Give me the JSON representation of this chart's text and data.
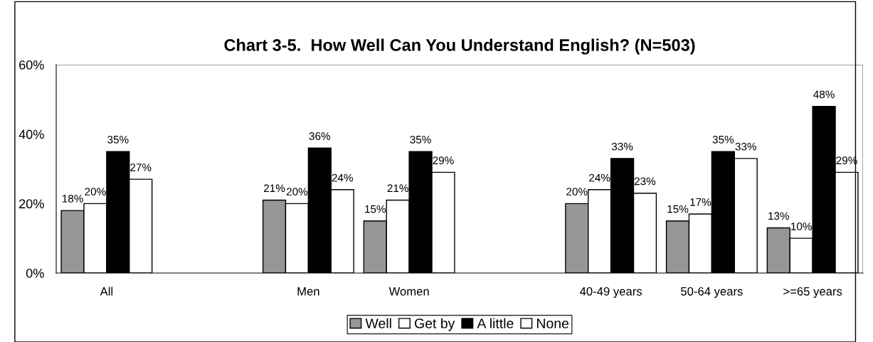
{
  "chart_data": {
    "type": "bar",
    "title": "Chart 3-5.  How Well Can You Understand English? (N=503)",
    "categories": [
      "All",
      null,
      "Men",
      "Women",
      null,
      "40-49 years",
      "50-64 years",
      ">=65 years"
    ],
    "series": [
      {
        "name": "Well",
        "color": "#969696",
        "values": [
          18,
          null,
          21,
          15,
          null,
          20,
          15,
          13
        ],
        "value_labels": [
          "18%",
          null,
          "21%",
          "15%",
          null,
          "20%",
          "15%",
          "13%"
        ]
      },
      {
        "name": "Get by",
        "color": "#ffffff",
        "values": [
          20,
          null,
          20,
          21,
          null,
          24,
          17,
          10
        ],
        "value_labels": [
          "20%",
          null,
          "20%",
          "21%",
          null,
          "24%",
          "17%",
          "10%"
        ]
      },
      {
        "name": "A little",
        "color": "#000000",
        "values": [
          35,
          null,
          36,
          35,
          null,
          33,
          35,
          48
        ],
        "value_labels": [
          "35%",
          null,
          "36%",
          "35%",
          null,
          "33%",
          "35%",
          "48%"
        ]
      },
      {
        "name": "None",
        "color": "#ffffff",
        "values": [
          27,
          null,
          24,
          29,
          null,
          23,
          33,
          29
        ],
        "value_labels": [
          "27%",
          null,
          "24%",
          "29%",
          null,
          "23%",
          "33%",
          "29%"
        ]
      }
    ],
    "ylim": [
      0,
      60
    ],
    "yticks": [
      {
        "value": 0,
        "label": "0%"
      },
      {
        "value": 20,
        "label": "20%"
      },
      {
        "value": 40,
        "label": "40%"
      },
      {
        "value": 60,
        "label": "60%"
      }
    ],
    "grid": false,
    "legend": "bottom"
  }
}
